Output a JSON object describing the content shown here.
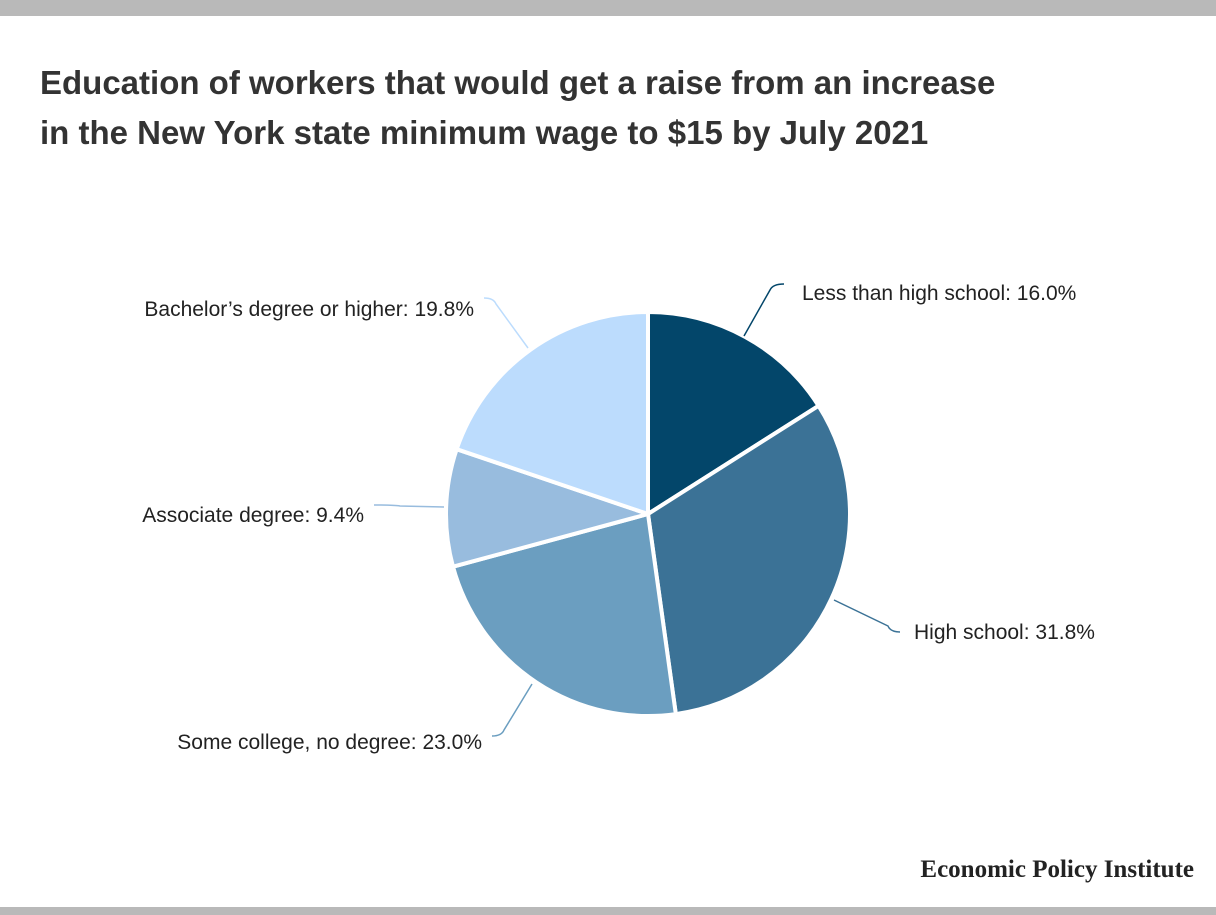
{
  "title_lines": [
    "Education of workers that would get a raise from an increase",
    "in the New York state minimum wage to $15 by July 2021"
  ],
  "source": "Economic Policy Institute",
  "chart_data": {
    "type": "pie",
    "title": "Education of workers that would get a raise from an increase in the New York state minimum wage to $15 by July 2021",
    "slices": [
      {
        "label": "Less than high school",
        "value": 16.0,
        "display": "Less than high school: 16.0%",
        "color": "#03466a"
      },
      {
        "label": "High school",
        "value": 31.8,
        "display": "High school: 31.8%",
        "color": "#3b7296"
      },
      {
        "label": "Some college, no degree",
        "value": 23.0,
        "display": "Some college, no degree: 23.0%",
        "color": "#6b9ec0"
      },
      {
        "label": "Associate degree",
        "value": 9.4,
        "display": "Associate degree: 9.4%",
        "color": "#98bcde"
      },
      {
        "label": "Bachelor’s degree or higher",
        "value": 19.8,
        "display": "Bachelor’s degree or higher: 19.8%",
        "color": "#bcdcfd"
      }
    ],
    "start_angle": "12 o'clock",
    "direction": "clockwise"
  }
}
